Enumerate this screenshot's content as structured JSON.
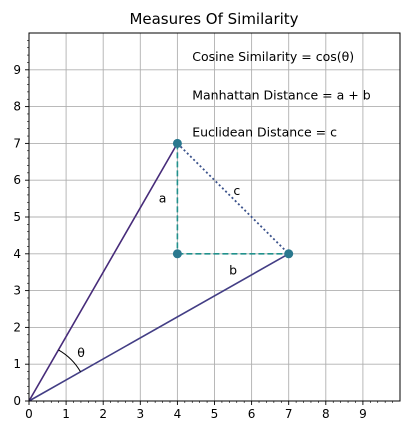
{
  "chart_data": {
    "type": "line",
    "title": "Measures Of Similarity",
    "xlabel": "",
    "ylabel": "",
    "xlim": [
      0,
      10
    ],
    "ylim": [
      0,
      10
    ],
    "grid": true,
    "x_ticks": [
      "0",
      "1",
      "2",
      "3",
      "4",
      "5",
      "6",
      "7",
      "8",
      "9"
    ],
    "y_ticks": [
      "0",
      "1",
      "2",
      "3",
      "4",
      "5",
      "6",
      "7",
      "8",
      "9"
    ],
    "minor_tick_step": 0.2,
    "colors": {
      "vector_a": "#472c7a",
      "vector_b": "#433e85",
      "dashed": "#21918c",
      "dotted": "#3b528b",
      "points": "#2a788e"
    },
    "series": [
      {
        "points": [
          [
            0,
            0
          ],
          [
            4,
            7
          ]
        ],
        "style": "solid"
      },
      {
        "points": [
          [
            0,
            0
          ],
          [
            7,
            4
          ]
        ],
        "style": "solid"
      },
      {
        "points": [
          [
            4,
            7
          ],
          [
            4,
            4
          ]
        ],
        "style": "dashed"
      },
      {
        "points": [
          [
            4,
            4
          ],
          [
            7,
            4
          ]
        ],
        "style": "dashed"
      },
      {
        "points": [
          [
            4,
            7
          ],
          [
            7,
            4
          ]
        ],
        "style": "dotted"
      }
    ],
    "markers": [
      [
        4,
        7
      ],
      [
        4,
        4
      ],
      [
        7,
        4
      ]
    ],
    "angle_arc": {
      "center": [
        0,
        0
      ],
      "radius": 1.6,
      "label": "θ",
      "label_at": [
        1.3,
        1.3
      ]
    },
    "segment_labels": [
      {
        "text": "a",
        "at": [
          3.6,
          5.5
        ]
      },
      {
        "text": "b",
        "at": [
          5.5,
          3.55
        ]
      },
      {
        "text": "c",
        "at": [
          5.6,
          5.7
        ]
      }
    ],
    "annotations": [
      {
        "text": "Cosine Similarity = cos(θ)",
        "at": [
          4.4,
          9.35
        ]
      },
      {
        "text": "Manhattan Distance = a + b",
        "at": [
          4.4,
          8.3
        ]
      },
      {
        "text": "Euclidean Distance = c",
        "at": [
          4.4,
          7.3
        ]
      }
    ]
  }
}
